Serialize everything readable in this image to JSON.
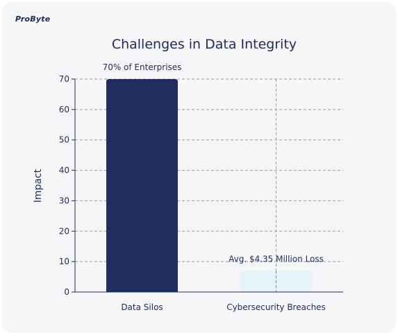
{
  "brand": {
    "logo_text": "ProByte"
  },
  "chart_data": {
    "type": "bar",
    "title": "Challenges in Data Integrity",
    "xlabel": "",
    "ylabel": "Impact",
    "ylim": [
      0,
      70
    ],
    "yticks": [
      0,
      10,
      20,
      30,
      40,
      50,
      60,
      70
    ],
    "grid": true,
    "categories": [
      "Data Silos",
      "Cybersecurity Breaches"
    ],
    "values": [
      70,
      7
    ],
    "data_labels": [
      "70% of Enterprises",
      "Avg. $4.35 Million Loss"
    ],
    "colors": [
      "#212d5e",
      "#e6f3fb"
    ]
  }
}
